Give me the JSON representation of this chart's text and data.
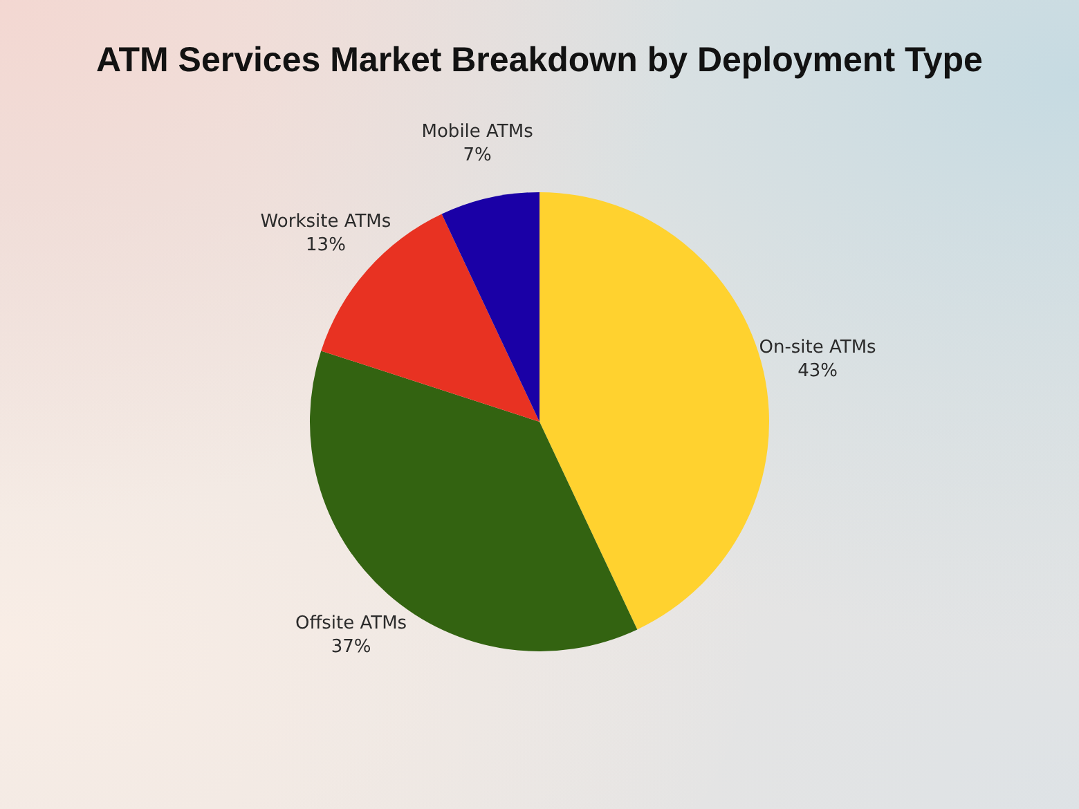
{
  "chart_data": {
    "type": "pie",
    "title": "ATM Services Market Breakdown by Deployment Type",
    "categories": [
      "On-site ATMs",
      "Offsite ATMs",
      "Worksite ATMs",
      "Mobile ATMs"
    ],
    "values": [
      43,
      37,
      13,
      7
    ],
    "colors": [
      "#ffd22f",
      "#336311",
      "#e83222",
      "#1a00a6"
    ],
    "value_labels": [
      "43%",
      "37%",
      "13%",
      "7%"
    ]
  }
}
